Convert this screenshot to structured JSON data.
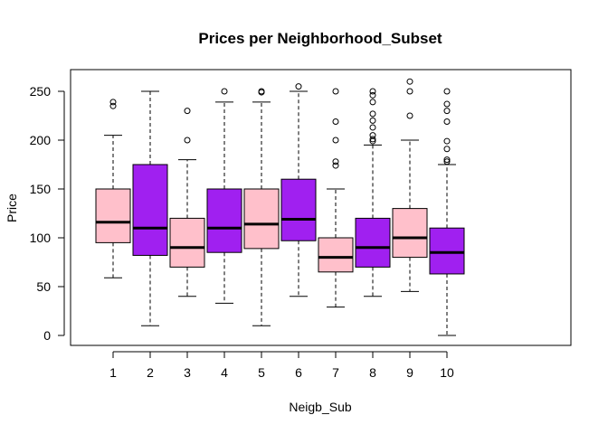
{
  "chart_data": {
    "type": "boxplot",
    "title": "Prices per Neighborhood_Subset",
    "xlabel": "Neigb_Sub",
    "ylabel": "Price",
    "ylim": [
      -10,
      275
    ],
    "yticks": [
      0,
      50,
      100,
      150,
      200,
      250
    ],
    "categories": [
      "1",
      "2",
      "3",
      "4",
      "5",
      "6",
      "7",
      "8",
      "9",
      "10"
    ],
    "colors": [
      "#ffc0cb",
      "#a020f0"
    ],
    "boxes": [
      {
        "category": "1",
        "lower_whisker": 59,
        "q1": 95,
        "median": 116,
        "q3": 150,
        "upper_whisker": 205,
        "outliers": [
          235,
          239
        ]
      },
      {
        "category": "2",
        "lower_whisker": 10,
        "q1": 82,
        "median": 110,
        "q3": 175,
        "upper_whisker": 250,
        "outliers": []
      },
      {
        "category": "3",
        "lower_whisker": 40,
        "q1": 70,
        "median": 90,
        "q3": 120,
        "upper_whisker": 180,
        "outliers": [
          200,
          230
        ]
      },
      {
        "category": "4",
        "lower_whisker": 33,
        "q1": 85,
        "median": 110,
        "q3": 150,
        "upper_whisker": 239,
        "outliers": [
          250
        ]
      },
      {
        "category": "5",
        "lower_whisker": 10,
        "q1": 89,
        "median": 114,
        "q3": 150,
        "upper_whisker": 239,
        "outliers": [
          249,
          250
        ]
      },
      {
        "category": "6",
        "lower_whisker": 40,
        "q1": 97,
        "median": 119,
        "q3": 160,
        "upper_whisker": 250,
        "outliers": [
          255
        ]
      },
      {
        "category": "7",
        "lower_whisker": 29,
        "q1": 65,
        "median": 80,
        "q3": 100,
        "upper_whisker": 150,
        "outliers": [
          174,
          178,
          200,
          219,
          250
        ]
      },
      {
        "category": "8",
        "lower_whisker": 40,
        "q1": 70,
        "median": 90,
        "q3": 120,
        "upper_whisker": 195,
        "outliers": [
          199,
          201,
          205,
          213,
          220,
          227,
          239,
          246,
          250
        ]
      },
      {
        "category": "9",
        "lower_whisker": 45,
        "q1": 80,
        "median": 100,
        "q3": 130,
        "upper_whisker": 200,
        "outliers": [
          225,
          250,
          260
        ]
      },
      {
        "category": "10",
        "lower_whisker": 0,
        "q1": 63,
        "median": 85,
        "q3": 110,
        "upper_whisker": 175,
        "outliers": [
          178,
          180,
          191,
          199,
          219,
          230,
          237,
          250
        ]
      }
    ]
  }
}
